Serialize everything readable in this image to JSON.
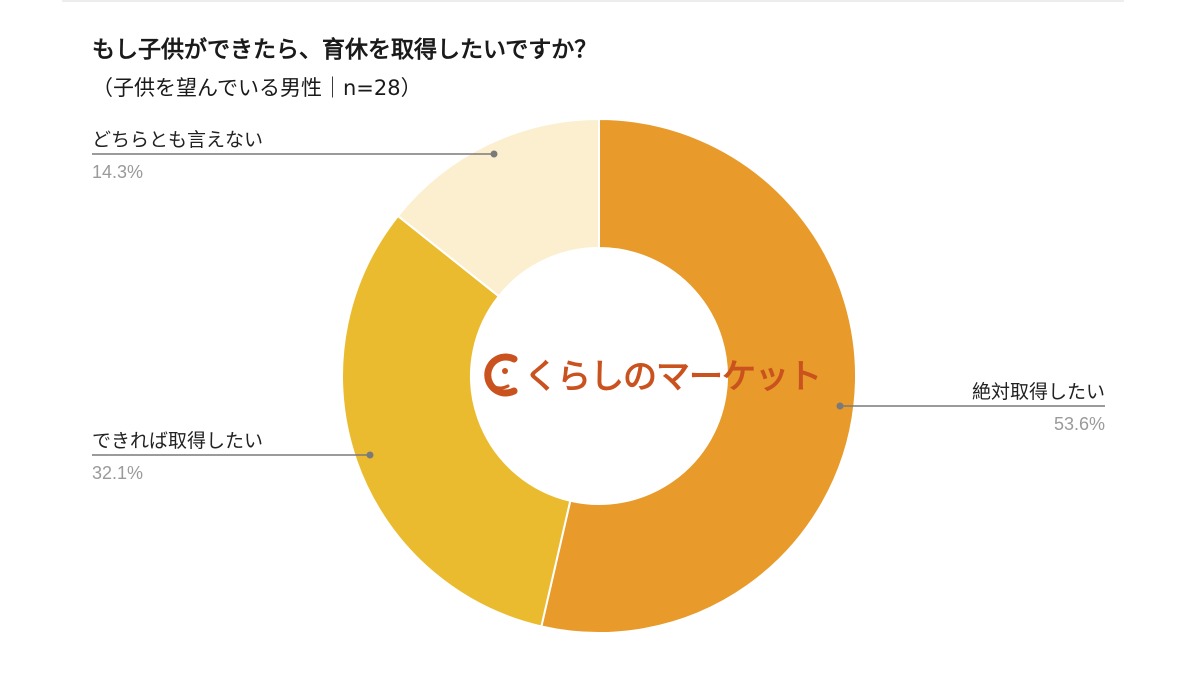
{
  "chart_data": {
    "type": "pie",
    "variant": "donut",
    "title": "もし子供ができたら、育休を取得したいですか？",
    "subtitle": "（子供を望んでいる男性｜n=28）",
    "slices": [
      {
        "label": "絶対取得したい",
        "value": 53.6,
        "value_label": "53.6%",
        "color": "#e89a2a"
      },
      {
        "label": "できれば取得したい",
        "value": 32.1,
        "value_label": "32.1%",
        "color": "#ebbb2f"
      },
      {
        "label": "どちらとも言えない",
        "value": 14.3,
        "value_label": "14.3%",
        "color": "#fbefcf"
      }
    ],
    "start_angle": "12 o'clock",
    "direction": "clockwise",
    "legend": "none"
  },
  "logo": {
    "text": "くらしのマーケット",
    "icon": "c-face-logo-icon",
    "color": "#c9521e"
  }
}
